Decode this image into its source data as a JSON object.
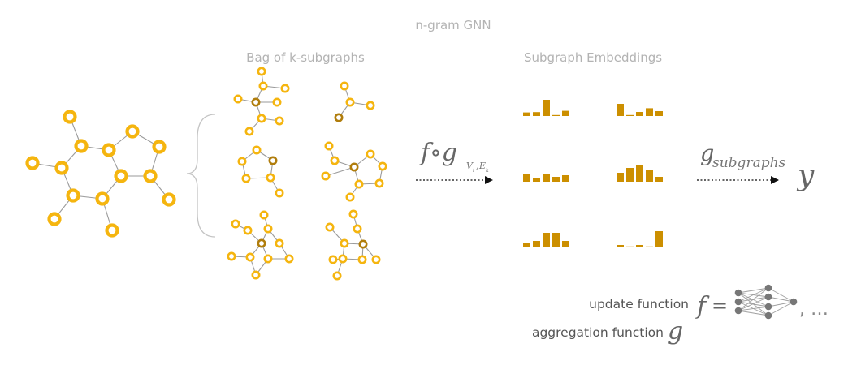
{
  "title": "n-gram GNN",
  "bag_label": "Bag of k-subgraphs",
  "embeddings_label": "Subgraph Embeddings",
  "op1": {
    "main": "f∘g",
    "sub_v": "V",
    "sub_vi": "i",
    "sub_sep": ",",
    "sub_e": "E",
    "sub_ek": "k"
  },
  "op2": {
    "main": "g",
    "sub": "subgraphs"
  },
  "output": "y",
  "legend": {
    "update_label": "update function",
    "update_symbol": "f",
    "equals": "=",
    "ellipsis": ", …",
    "aggregation_label": "aggregation function",
    "aggregation_symbol": "g"
  },
  "colors": {
    "node": "#f5b50f",
    "center_node": "#b07d0c",
    "bar": "#cc8f00",
    "edge": "#9a9a9a"
  },
  "histograms": [
    [
      0.22,
      0.24,
      1.0,
      0.05,
      0.32
    ],
    [
      0.75,
      0.05,
      0.25,
      0.48,
      0.3
    ],
    [
      0.5,
      0.2,
      0.5,
      0.3,
      0.4
    ],
    [
      0.55,
      0.85,
      1.0,
      0.7,
      0.3
    ],
    [
      0.3,
      0.4,
      0.9,
      0.9,
      0.4
    ],
    [
      0.15,
      0.05,
      0.15,
      0.05,
      1.0
    ]
  ]
}
